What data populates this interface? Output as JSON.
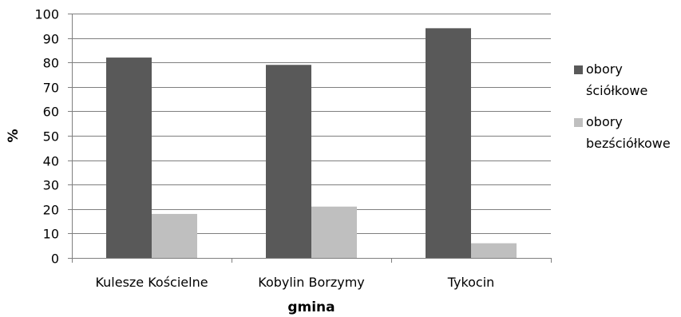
{
  "chart_data": {
    "type": "bar",
    "categories": [
      "Kulesze Kościelne",
      "Kobylin Borzymy",
      "Tykocin"
    ],
    "series": [
      {
        "name": "obory ściółkowe",
        "legend_lines": [
          "obory",
          "ściółkowe"
        ],
        "values": [
          82,
          79,
          94
        ],
        "color": "#595959"
      },
      {
        "name": "obory bezściółkowe",
        "legend_lines": [
          "obory",
          "bezściółkowe"
        ],
        "values": [
          18,
          21,
          6
        ],
        "color": "#bfbfbf"
      }
    ],
    "xlabel": "gmina",
    "ylabel": "%",
    "ylim": [
      0,
      100
    ],
    "yticks": [
      0,
      10,
      20,
      30,
      40,
      50,
      60,
      70,
      80,
      90,
      100
    ],
    "grid": true,
    "legend": "right"
  }
}
